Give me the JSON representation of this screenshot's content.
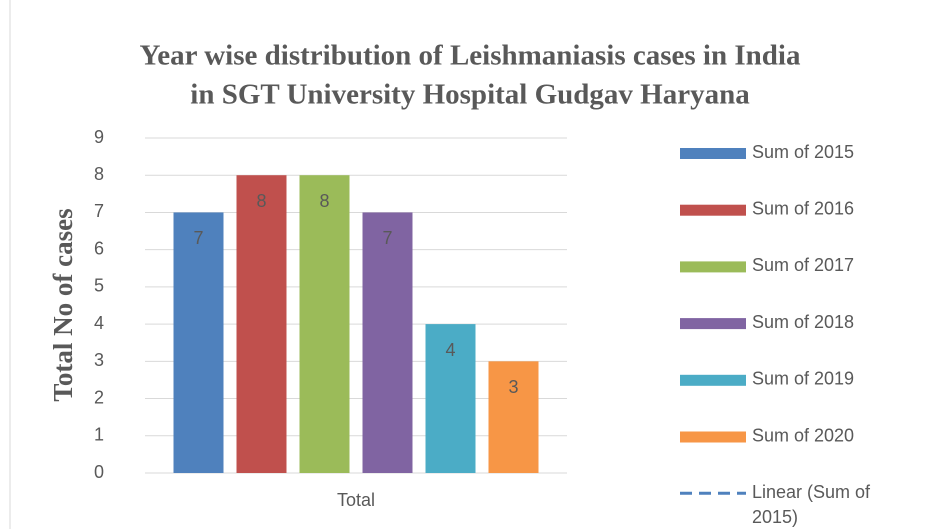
{
  "chart_data": {
    "type": "bar",
    "title": [
      "Year wise distribution of Leishmaniasis cases in India",
      "in SGT University Hospital  Gudgav Haryana"
    ],
    "y_label": "Total No of cases",
    "categories": [
      "Total"
    ],
    "series": [
      {
        "name": "Sum of 2015",
        "color": "#4f81bd",
        "values": [
          7
        ]
      },
      {
        "name": "Sum of 2016",
        "color": "#c0504d",
        "values": [
          8
        ]
      },
      {
        "name": "Sum of 2017",
        "color": "#9bbb59",
        "values": [
          8
        ]
      },
      {
        "name": "Sum of 2018",
        "color": "#8064a2",
        "values": [
          7
        ]
      },
      {
        "name": "Sum of 2019",
        "color": "#4bacc6",
        "values": [
          4
        ]
      },
      {
        "name": "Sum of 2020",
        "color": "#f79646",
        "values": [
          3
        ]
      }
    ],
    "trendline": {
      "name": "Linear (Sum of 2015)",
      "color": "#4f81bd"
    },
    "ylim": [
      0,
      9
    ],
    "yticks": [
      0,
      1,
      2,
      3,
      4,
      5,
      6,
      7,
      8,
      9
    ],
    "grid": true,
    "legend": "right"
  }
}
